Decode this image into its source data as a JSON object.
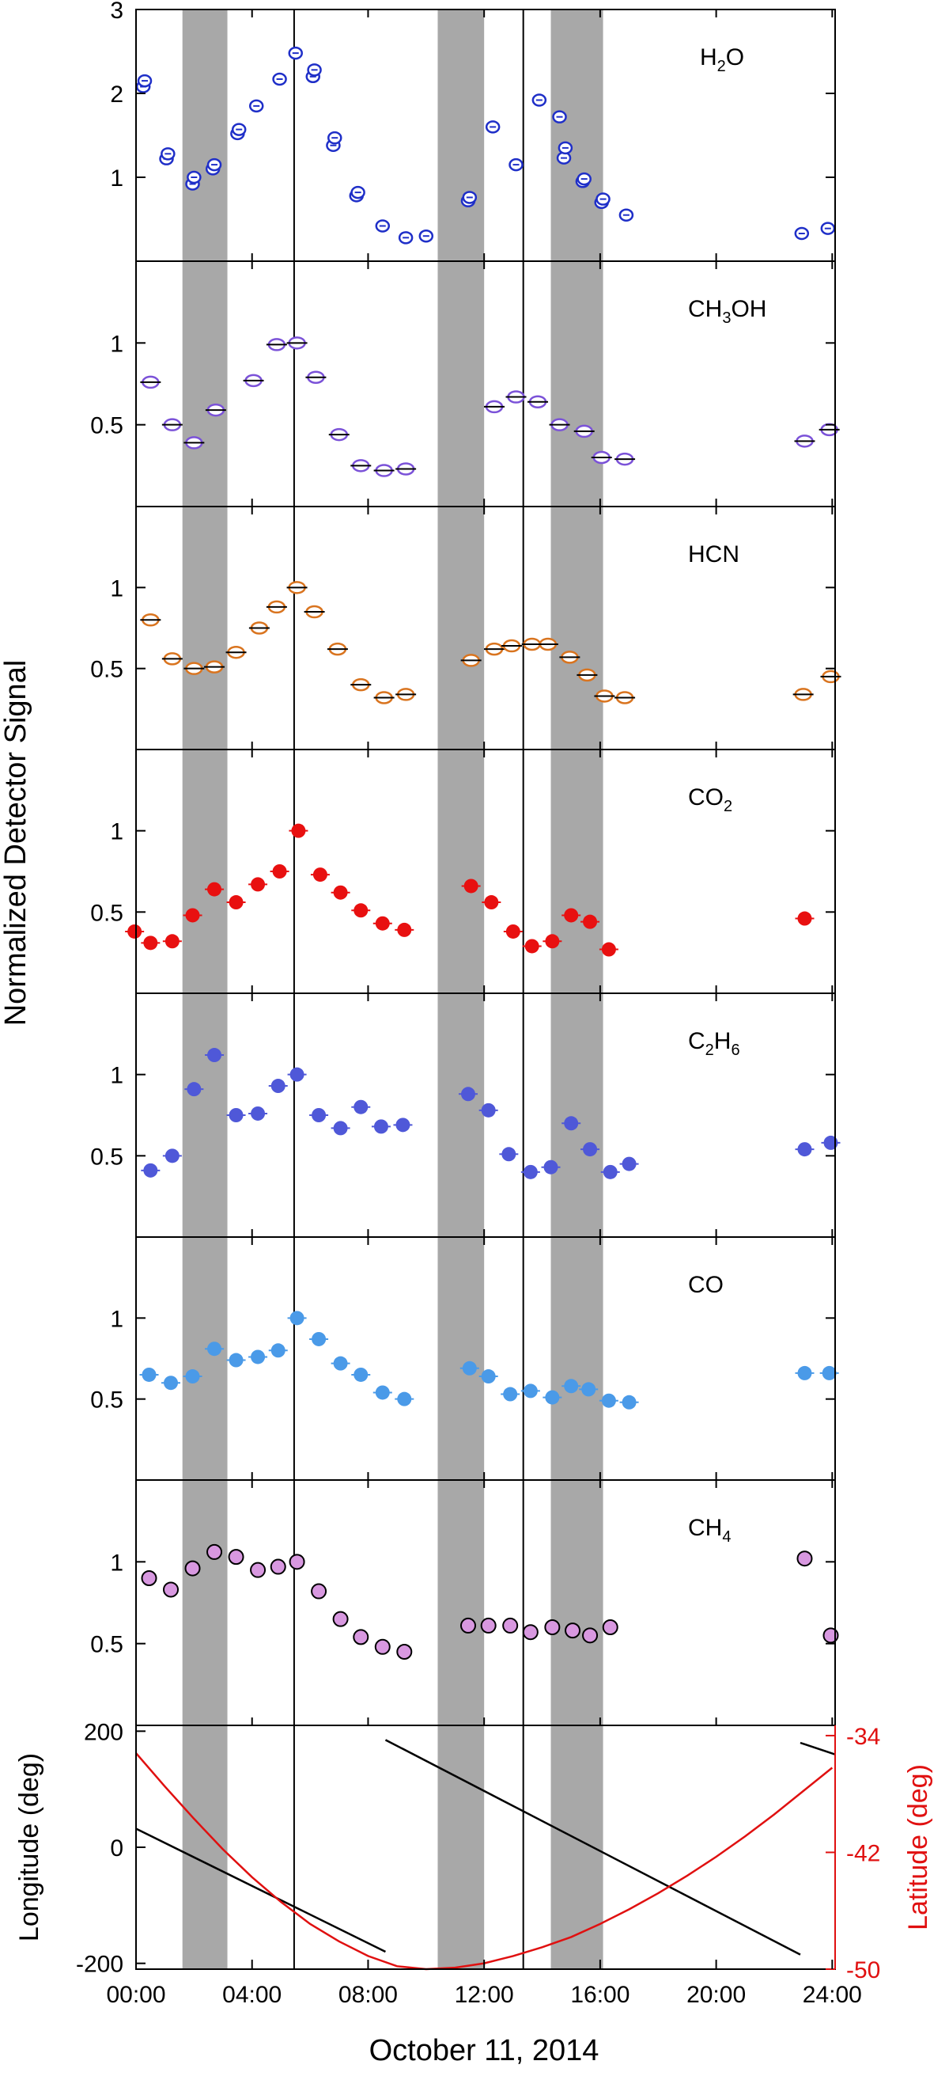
{
  "figure": {
    "ylabel_common": "Normalized Detector Signal",
    "xlabel": "October 11, 2014",
    "x_ticks": [
      "00:00",
      "04:00",
      "08:00",
      "12:00",
      "16:00",
      "20:00",
      "24:00"
    ],
    "x_tick_hours": [
      0,
      4,
      8,
      12,
      16,
      20,
      24
    ],
    "xlim_hours": [
      0,
      24.1
    ],
    "shaded_bands_hours": [
      [
        1.6,
        3.15
      ],
      [
        10.4,
        12.0
      ],
      [
        14.3,
        16.1
      ]
    ],
    "vertical_lines_hours": [
      5.45,
      13.35
    ]
  },
  "chart_data": [
    {
      "type": "scatter",
      "species": "H2O",
      "label_main": "H",
      "label_sub": "2",
      "label_tail": "O",
      "ylim": [
        0,
        3
      ],
      "y_ticks": [
        1,
        2,
        3
      ],
      "color": "#1f2fc8",
      "marker": "open-circle",
      "x": [
        0.25,
        0.3,
        1.05,
        1.1,
        1.95,
        2.0,
        2.65,
        2.7,
        3.5,
        3.55,
        4.15,
        4.95,
        5.5,
        6.1,
        6.15,
        6.8,
        6.85,
        7.6,
        7.65,
        8.5,
        9.3,
        10.0,
        11.45,
        11.5,
        12.3,
        13.1,
        13.9,
        14.6,
        14.75,
        14.8,
        15.4,
        15.45,
        16.05,
        16.1,
        16.9,
        22.95,
        23.85
      ],
      "values": [
        2.08,
        2.15,
        1.22,
        1.28,
        0.92,
        1.0,
        1.1,
        1.15,
        1.52,
        1.57,
        1.85,
        2.17,
        2.48,
        2.2,
        2.28,
        1.38,
        1.47,
        0.78,
        0.82,
        0.42,
        0.28,
        0.3,
        0.72,
        0.76,
        1.6,
        1.15,
        1.92,
        1.72,
        1.23,
        1.35,
        0.95,
        0.98,
        0.7,
        0.74,
        0.55,
        0.33,
        0.39
      ]
    },
    {
      "type": "scatter",
      "species": "CH3OH",
      "label_main": "CH",
      "label_sub": "3",
      "label_tail": "OH",
      "ylim": [
        0,
        1.5
      ],
      "y_ticks": [
        0.5,
        1
      ],
      "color": "#7b52d8",
      "marker": "open-circle-errorbar",
      "x": [
        0.5,
        1.25,
        2.0,
        2.75,
        4.05,
        4.85,
        5.55,
        6.2,
        7.0,
        7.75,
        8.55,
        9.3,
        12.35,
        13.1,
        13.85,
        14.6,
        15.45,
        16.05,
        16.85,
        23.05,
        23.9
      ],
      "values": [
        0.76,
        0.5,
        0.39,
        0.59,
        0.77,
        0.99,
        1.0,
        0.79,
        0.44,
        0.25,
        0.22,
        0.23,
        0.61,
        0.67,
        0.64,
        0.5,
        0.46,
        0.3,
        0.29,
        0.4,
        0.47
      ]
    },
    {
      "type": "scatter",
      "species": "HCN",
      "label_main": "HCN",
      "label_sub": "",
      "label_tail": "",
      "ylim": [
        0,
        1.5
      ],
      "y_ticks": [
        0.5,
        1
      ],
      "color": "#d9741f",
      "marker": "open-circle-errorbar",
      "x": [
        0.5,
        1.25,
        2.0,
        2.7,
        3.45,
        4.25,
        4.85,
        5.55,
        6.15,
        6.95,
        7.75,
        8.55,
        9.3,
        11.55,
        12.35,
        12.95,
        13.65,
        14.2,
        14.95,
        15.55,
        16.15,
        16.85,
        23.0,
        23.95
      ],
      "values": [
        0.8,
        0.56,
        0.5,
        0.51,
        0.6,
        0.75,
        0.88,
        1.0,
        0.85,
        0.62,
        0.4,
        0.32,
        0.34,
        0.55,
        0.62,
        0.64,
        0.65,
        0.65,
        0.57,
        0.46,
        0.33,
        0.32,
        0.34,
        0.45
      ]
    },
    {
      "type": "scatter",
      "species": "CO2",
      "label_main": "CO",
      "label_sub": "2",
      "label_tail": "",
      "ylim": [
        0,
        1.5
      ],
      "y_ticks": [
        0.5,
        1
      ],
      "color": "#e81010",
      "marker": "filled-circle",
      "x": [
        -0.05,
        0.5,
        1.25,
        1.95,
        2.7,
        3.45,
        4.2,
        4.95,
        5.6,
        6.35,
        7.05,
        7.75,
        8.5,
        9.25,
        11.55,
        12.25,
        13.0,
        13.65,
        14.35,
        15.0,
        15.65,
        16.3,
        23.05
      ],
      "values": [
        0.38,
        0.31,
        0.32,
        0.48,
        0.64,
        0.56,
        0.67,
        0.75,
        1.0,
        0.73,
        0.62,
        0.51,
        0.43,
        0.39,
        0.66,
        0.56,
        0.38,
        0.29,
        0.32,
        0.48,
        0.44,
        0.27,
        0.46
      ]
    },
    {
      "type": "scatter",
      "species": "C2H6",
      "label_main": "C",
      "label_sub": "2",
      "label_tail": "H6",
      "ylim": [
        0,
        1.5
      ],
      "y_ticks": [
        0.5,
        1
      ],
      "color": "#4f58d8",
      "marker": "filled-circle",
      "x": [
        0.5,
        1.25,
        2.0,
        2.7,
        3.45,
        4.2,
        4.9,
        5.55,
        6.3,
        7.05,
        7.75,
        8.45,
        9.2,
        11.45,
        12.15,
        12.85,
        13.6,
        14.3,
        15.0,
        15.65,
        16.35,
        17.0,
        23.05,
        23.95
      ],
      "values": [
        0.41,
        0.5,
        0.91,
        1.12,
        0.75,
        0.76,
        0.93,
        1.0,
        0.75,
        0.67,
        0.8,
        0.68,
        0.69,
        0.88,
        0.78,
        0.51,
        0.4,
        0.43,
        0.7,
        0.54,
        0.4,
        0.45,
        0.54,
        0.58
      ]
    },
    {
      "type": "scatter",
      "species": "CO",
      "label_main": "CO",
      "label_sub": "",
      "label_tail": "",
      "ylim": [
        0,
        1.5
      ],
      "y_ticks": [
        0.5,
        1
      ],
      "color": "#4a9ae8",
      "marker": "filled-circle",
      "x": [
        0.45,
        1.2,
        1.95,
        2.7,
        3.45,
        4.2,
        4.9,
        5.55,
        6.3,
        7.05,
        7.75,
        8.5,
        9.25,
        11.5,
        12.15,
        12.9,
        13.6,
        14.35,
        15.0,
        15.6,
        16.3,
        17.0,
        23.05,
        23.9
      ],
      "values": [
        0.65,
        0.6,
        0.64,
        0.81,
        0.74,
        0.76,
        0.8,
        1.0,
        0.87,
        0.72,
        0.65,
        0.54,
        0.5,
        0.69,
        0.64,
        0.53,
        0.55,
        0.51,
        0.58,
        0.56,
        0.49,
        0.48,
        0.66,
        0.66
      ]
    },
    {
      "type": "scatter",
      "species": "CH4",
      "label_main": "CH",
      "label_sub": "4",
      "label_tail": "",
      "ylim": [
        0,
        1.5
      ],
      "y_ticks": [
        0.5,
        1
      ],
      "color": "#d898e0",
      "marker": "filled-circle-outlined",
      "x": [
        0.45,
        1.2,
        1.95,
        2.7,
        3.45,
        4.2,
        4.9,
        5.55,
        6.3,
        7.05,
        7.75,
        8.5,
        9.25,
        11.45,
        12.15,
        12.9,
        13.6,
        14.35,
        15.05,
        15.65,
        16.35,
        23.05,
        23.95
      ],
      "values": [
        0.9,
        0.83,
        0.96,
        1.06,
        1.03,
        0.95,
        0.97,
        1.0,
        0.82,
        0.65,
        0.54,
        0.48,
        0.45,
        0.61,
        0.61,
        0.61,
        0.57,
        0.6,
        0.58,
        0.55,
        0.6,
        1.02,
        0.55
      ]
    },
    {
      "type": "line",
      "panel": "geometry",
      "ylabel_left": "Longitude (deg)",
      "ylabel_right": "Latitude (deg)",
      "left_ylim": [
        -210,
        210
      ],
      "left_ticks": [
        -200,
        0,
        200
      ],
      "right_ylim": [
        -50,
        -33.3
      ],
      "right_ticks": [
        -50,
        -42,
        -34
      ],
      "right_color": "#e01010",
      "longitude_segments": [
        {
          "x": [
            0.0,
            8.6
          ],
          "values": [
            32,
            -180
          ]
        },
        {
          "x": [
            8.6,
            22.9
          ],
          "values": [
            185,
            -185
          ]
        },
        {
          "x": [
            22.9,
            24.1
          ],
          "values": [
            180,
            160
          ]
        }
      ],
      "latitude": {
        "x": [
          0,
          1,
          2,
          3,
          4,
          5,
          6,
          7,
          8,
          9,
          10,
          11,
          12,
          13,
          14,
          15,
          16,
          17,
          18,
          19,
          20,
          21,
          22,
          23,
          24
        ],
        "values": [
          -35.2,
          -37.5,
          -39.7,
          -41.8,
          -43.7,
          -45.4,
          -46.9,
          -48.1,
          -49.1,
          -49.8,
          -50.0,
          -49.9,
          -49.6,
          -49.1,
          -48.5,
          -47.8,
          -46.9,
          -45.9,
          -44.8,
          -43.6,
          -42.3,
          -40.9,
          -39.4,
          -37.8,
          -36.2
        ]
      }
    }
  ]
}
